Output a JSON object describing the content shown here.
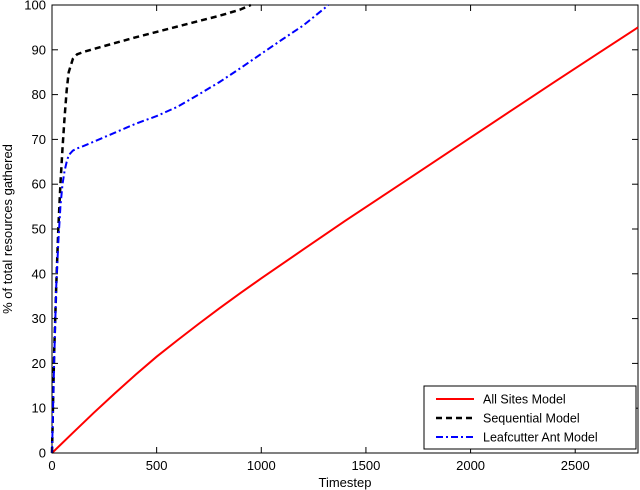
{
  "chart_data": {
    "type": "line",
    "title": "",
    "xlabel": "Timestep",
    "ylabel": "% of total resources gathered",
    "xlim": [
      0,
      2800
    ],
    "ylim": [
      0,
      100
    ],
    "xticks": [
      0,
      500,
      1000,
      1500,
      2000,
      2500
    ],
    "yticks": [
      0,
      10,
      20,
      30,
      40,
      50,
      60,
      70,
      80,
      90,
      100
    ],
    "grid": false,
    "legend_position": "bottom-right",
    "series": [
      {
        "name": "All Sites Model",
        "color": "#ff0000",
        "style": "solid",
        "x": [
          0,
          100,
          200,
          300,
          400,
          500,
          600,
          700,
          800,
          900,
          1000,
          1200,
          1400,
          1600,
          1800,
          2000,
          2200,
          2400,
          2600,
          2800
        ],
        "y": [
          0,
          4.5,
          9,
          13.3,
          17.5,
          21.5,
          25.2,
          28.8,
          32.3,
          35.7,
          39,
          45.4,
          51.8,
          58,
          64.2,
          70.4,
          76.6,
          82.8,
          88.9,
          95
        ]
      },
      {
        "name": "Sequential Model",
        "color": "#000000",
        "style": "dashed",
        "x": [
          0,
          10,
          20,
          30,
          40,
          50,
          60,
          70,
          80,
          100,
          120,
          150,
          200,
          300,
          400,
          500,
          600,
          700,
          800,
          900,
          950
        ],
        "y": [
          0,
          22,
          37,
          50,
          60,
          68,
          75,
          81,
          85,
          88,
          89,
          89.5,
          90.2,
          91.5,
          92.8,
          94,
          95.2,
          96.4,
          97.6,
          99,
          100
        ]
      },
      {
        "name": "Leafcutter Ant Model",
        "color": "#0000ff",
        "style": "dashdot",
        "x": [
          0,
          10,
          20,
          30,
          40,
          50,
          60,
          70,
          80,
          100,
          120,
          150,
          200,
          300,
          400,
          500,
          600,
          700,
          800,
          900,
          1000,
          1100,
          1200,
          1300,
          1320
        ],
        "y": [
          0,
          20,
          37,
          47,
          55,
          60,
          63,
          65,
          66.5,
          67.5,
          68,
          68.5,
          69.5,
          71.5,
          73.5,
          75.2,
          77.3,
          80,
          82.8,
          85.9,
          89.1,
          92.3,
          95.4,
          99.2,
          100
        ]
      }
    ]
  }
}
